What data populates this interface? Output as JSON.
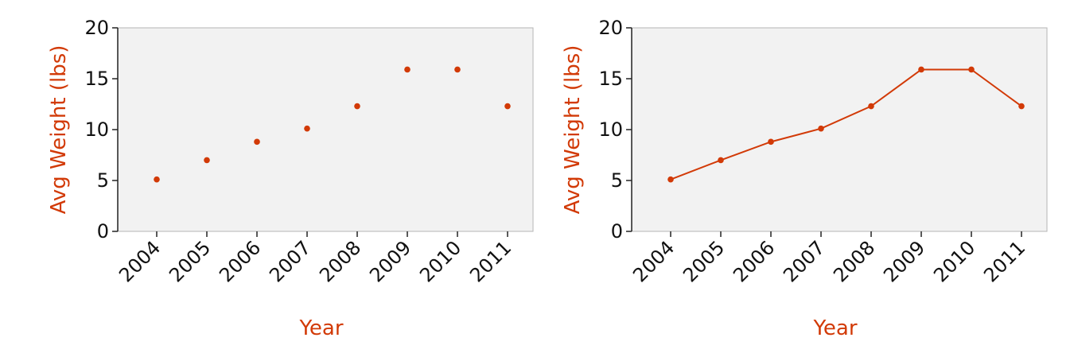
{
  "chart_data": [
    {
      "type": "scatter",
      "x": [
        "2004",
        "2005",
        "2006",
        "2007",
        "2008",
        "2009",
        "2010",
        "2011"
      ],
      "values": [
        5.1,
        7.0,
        8.8,
        10.1,
        12.3,
        15.9,
        15.9,
        12.3
      ],
      "xlabel": "Year",
      "ylabel": "Avg Weight (lbs)",
      "ylim": [
        0,
        20
      ],
      "yticks": [
        "0",
        "5",
        "10",
        "15",
        "20"
      ],
      "grid": false,
      "color": "#d23a07",
      "background": "#f2f2f2"
    },
    {
      "type": "line",
      "x": [
        "2004",
        "2005",
        "2006",
        "2007",
        "2008",
        "2009",
        "2010",
        "2011"
      ],
      "values": [
        5.1,
        7.0,
        8.8,
        10.1,
        12.3,
        15.9,
        15.9,
        12.3
      ],
      "xlabel": "Year",
      "ylabel": "Avg Weight (lbs)",
      "ylim": [
        0,
        20
      ],
      "yticks": [
        "0",
        "5",
        "10",
        "15",
        "20"
      ],
      "grid": false,
      "color": "#d23a07",
      "background": "#f2f2f2"
    }
  ]
}
